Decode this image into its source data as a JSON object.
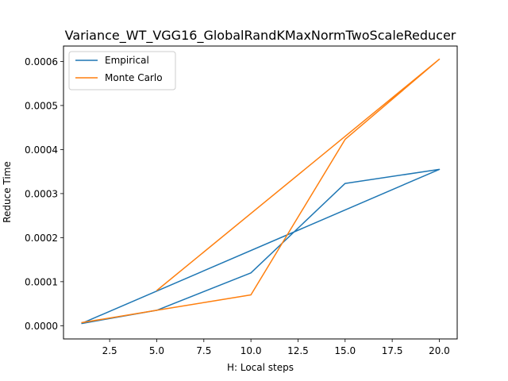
{
  "chart_data": {
    "type": "line",
    "title": "Variance_WT_VGG16_GlobalRandKMaxNormTwoScaleReducer",
    "xlabel": "H: Local steps",
    "ylabel": "Reduce Time",
    "xlim": [
      0.05,
      20.95
    ],
    "ylim": [
      -3e-05,
      0.000635
    ],
    "xticks": [
      2.5,
      5.0,
      7.5,
      10.0,
      12.5,
      15.0,
      17.5,
      20.0
    ],
    "xtick_labels": [
      "2.5",
      "5.0",
      "7.5",
      "10.0",
      "12.5",
      "15.0",
      "17.5",
      "20.0"
    ],
    "yticks": [
      0,
      0.0001,
      0.0002,
      0.0003,
      0.0004,
      0.0005,
      0.0006
    ],
    "ytick_labels": [
      "0.0000",
      "0.0001",
      "0.0002",
      "0.0003",
      "0.0004",
      "0.0005",
      "0.0006"
    ],
    "grid": false,
    "legend_position": "top-left",
    "series": [
      {
        "name": "Empirical",
        "color": "#1f77b4",
        "x": [
          1,
          5,
          10,
          15,
          20,
          1,
          5,
          10,
          15,
          20
        ],
        "y": [
          5e-06,
          3.5e-05,
          0.00012,
          0.000323,
          0.000355,
          5e-06,
          3.5e-05,
          0.00012,
          0.000323,
          0.000355
        ],
        "path_x": [
          1,
          20,
          15,
          10,
          5,
          1
        ],
        "path_y": [
          5e-06,
          0.000355,
          0.000323,
          0.00012,
          3.5e-05,
          5e-06
        ]
      },
      {
        "name": "Monte Carlo",
        "color": "#ff7f0e",
        "path_x": [
          5,
          20,
          15,
          10,
          5,
          1
        ],
        "path_y": [
          8e-05,
          0.000605,
          0.000423,
          7e-05,
          3.5e-05,
          7e-06
        ]
      }
    ]
  }
}
